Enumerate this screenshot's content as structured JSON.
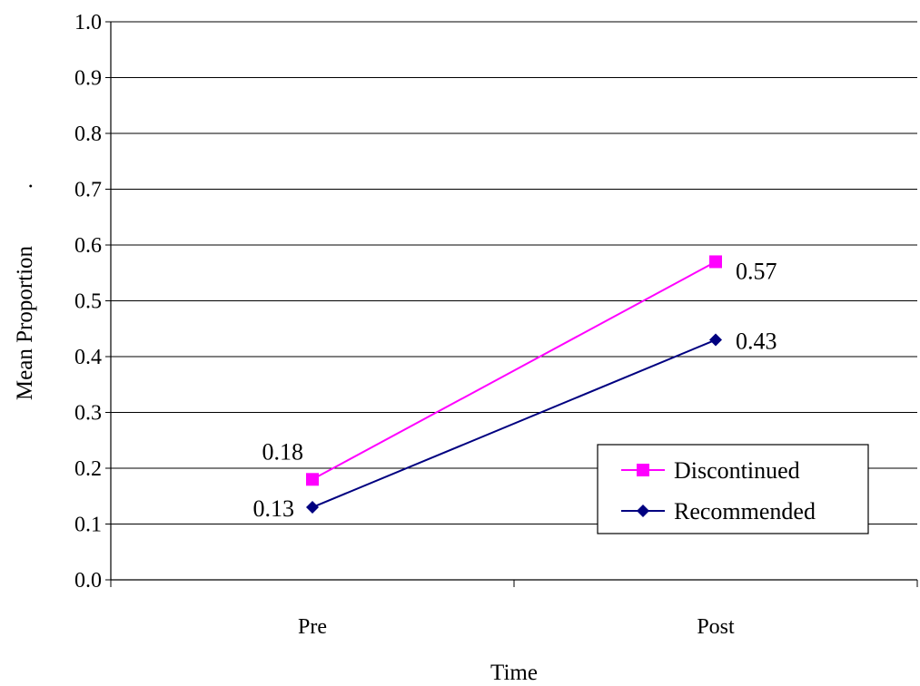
{
  "chart_data": {
    "type": "line",
    "title": "",
    "xlabel": "Time",
    "ylabel": "Mean Proportion",
    "ylabel_suffix": ".",
    "categories": [
      "Pre",
      "Post"
    ],
    "ylim": [
      0,
      1
    ],
    "yticks": [
      "0.0",
      "0.1",
      "0.2",
      "0.3",
      "0.4",
      "0.5",
      "0.6",
      "0.7",
      "0.8",
      "0.9",
      "1.0"
    ],
    "grid": true,
    "legend_position": "bottom-right",
    "series": [
      {
        "name": "Discontinued",
        "values": [
          0.18,
          0.57
        ],
        "labels": [
          "0.18",
          "0.57"
        ],
        "color": "#ff00ff",
        "marker": "square"
      },
      {
        "name": "Recommended",
        "values": [
          0.13,
          0.43
        ],
        "labels": [
          "0.13",
          "0.43"
        ],
        "color": "#000080",
        "marker": "diamond"
      }
    ]
  }
}
